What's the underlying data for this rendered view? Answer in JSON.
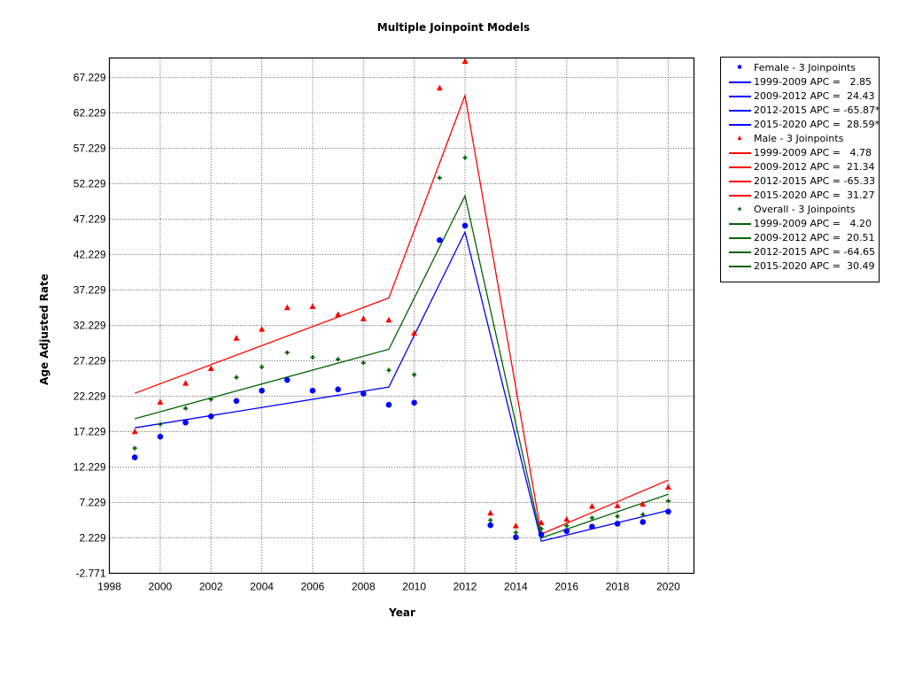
{
  "chart_data": {
    "type": "line",
    "title": "Multiple Joinpoint Models",
    "xlabel": "Year",
    "ylabel": "Age Adjusted Rate",
    "xlim": [
      1998,
      2021
    ],
    "ylim": [
      -2.771,
      70.229
    ],
    "x_ticks": [
      1998,
      2000,
      2002,
      2004,
      2006,
      2008,
      2010,
      2012,
      2014,
      2016,
      2018,
      2020
    ],
    "y_ticks": [
      -2.771,
      2.229,
      7.229,
      12.229,
      17.229,
      22.229,
      27.229,
      32.229,
      37.229,
      42.229,
      47.229,
      52.229,
      57.229,
      62.229,
      67.229
    ],
    "y_tick_labels": [
      "-2.771",
      "2.229",
      "7.229",
      "12.229",
      "17.229",
      "22.229",
      "27.229",
      "32.229",
      "37.229",
      "42.229",
      "47.229",
      "52.229",
      "57.229",
      "62.229",
      "67.229"
    ],
    "grid": true,
    "legend_position": "right-outside",
    "x": [
      1999,
      2000,
      2001,
      2002,
      2003,
      2004,
      2005,
      2006,
      2007,
      2008,
      2009,
      2010,
      2011,
      2012,
      2013,
      2014,
      2015,
      2016,
      2017,
      2018,
      2019,
      2020
    ],
    "series": [
      {
        "name": "Female - 3 Joinpoints",
        "color": "#0000ff",
        "marker": "circle",
        "observed": [
          13.6,
          16.52,
          18.52,
          19.39,
          21.56,
          23.02,
          24.52,
          23.02,
          23.19,
          22.6,
          21.02,
          21.32,
          44.27,
          46.31,
          4.02,
          2.31,
          2.73,
          3.19,
          3.81,
          4.23,
          4.48,
          5.94
        ],
        "fit_joinpoints": {
          "x": [
            1999,
            2009,
            2012,
            2015,
            2020
          ],
          "y": [
            17.77,
            23.52,
            45.4,
            1.77,
            6.1
          ]
        },
        "segments": [
          {
            "label": "1999-2009 APC =   2.85"
          },
          {
            "label": "2009-2012 APC =  24.43"
          },
          {
            "label": "2012-2015 APC = -65.87*"
          },
          {
            "label": "2015-2020 APC =  28.59*"
          }
        ]
      },
      {
        "name": "Male - 3 Joinpoints",
        "color": "#ff0000",
        "marker": "triangle",
        "observed": [
          17.19,
          21.35,
          24.02,
          26.1,
          30.39,
          31.65,
          34.69,
          34.85,
          33.73,
          33.14,
          32.94,
          31.1,
          65.69,
          69.48,
          5.69,
          3.9,
          4.35,
          4.81,
          6.65,
          6.73,
          6.94,
          9.35
        ],
        "fit_joinpoints": {
          "x": [
            1999,
            2009,
            2012,
            2015,
            2020
          ],
          "y": [
            22.64,
            36.1,
            64.69,
            2.77,
            10.39
          ]
        },
        "segments": [
          {
            "label": "1999-2009 APC =   4.78"
          },
          {
            "label": "2009-2012 APC =  21.34"
          },
          {
            "label": "2012-2015 APC = -65.33"
          },
          {
            "label": "2015-2020 APC =  31.27"
          }
        ]
      },
      {
        "name": "Overall - 3 Joinpoints",
        "color": "#006400",
        "marker": "plus",
        "observed": [
          14.89,
          18.27,
          20.52,
          21.77,
          24.89,
          26.35,
          28.39,
          27.73,
          27.44,
          26.94,
          25.9,
          25.27,
          53.06,
          55.9,
          4.73,
          2.98,
          3.52,
          3.94,
          5.06,
          5.27,
          5.52,
          7.44
        ],
        "fit_joinpoints": {
          "x": [
            1999,
            2009,
            2012,
            2015,
            2020
          ],
          "y": [
            19.06,
            28.85,
            50.52,
            2.23,
            8.39
          ]
        },
        "segments": [
          {
            "label": "1999-2009 APC =   4.20"
          },
          {
            "label": "2009-2012 APC =  20.51"
          },
          {
            "label": "2012-2015 APC = -64.65"
          },
          {
            "label": "2015-2020 APC =  30.49"
          }
        ]
      }
    ]
  },
  "legend": {
    "rows": [
      {
        "type": "marker",
        "marker": "circle",
        "color": "#0000ff",
        "label": "Female - 3 Joinpoints"
      },
      {
        "type": "line",
        "color": "#0000ff",
        "label": "1999-2009 APC =   2.85"
      },
      {
        "type": "line",
        "color": "#0000ff",
        "label": "2009-2012 APC =  24.43"
      },
      {
        "type": "line",
        "color": "#0000ff",
        "label": "2012-2015 APC = -65.87*"
      },
      {
        "type": "line",
        "color": "#0000ff",
        "label": "2015-2020 APC =  28.59*"
      },
      {
        "type": "marker",
        "marker": "triangle",
        "color": "#ff0000",
        "label": "Male - 3 Joinpoints"
      },
      {
        "type": "line",
        "color": "#ff0000",
        "label": "1999-2009 APC =   4.78"
      },
      {
        "type": "line",
        "color": "#ff0000",
        "label": "2009-2012 APC =  21.34"
      },
      {
        "type": "line",
        "color": "#ff0000",
        "label": "2012-2015 APC = -65.33"
      },
      {
        "type": "line",
        "color": "#ff0000",
        "label": "2015-2020 APC =  31.27"
      },
      {
        "type": "marker",
        "marker": "plus",
        "color": "#006400",
        "label": "Overall - 3 Joinpoints"
      },
      {
        "type": "line",
        "color": "#006400",
        "label": "1999-2009 APC =   4.20"
      },
      {
        "type": "line",
        "color": "#006400",
        "label": "2009-2012 APC =  20.51"
      },
      {
        "type": "line",
        "color": "#006400",
        "label": "2012-2015 APC = -64.65"
      },
      {
        "type": "line",
        "color": "#006400",
        "label": "2015-2020 APC =  30.49"
      }
    ]
  }
}
